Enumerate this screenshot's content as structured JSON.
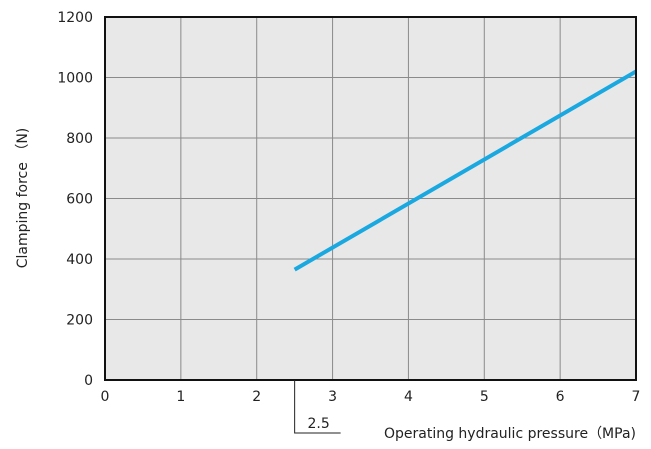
{
  "chart_data": {
    "type": "line",
    "xlabel": "Operating hydraulic pressure（MPa)",
    "ylabel": "Clamping force （N)",
    "xlim": [
      0,
      7
    ],
    "ylim": [
      0,
      1200
    ],
    "x_ticks": [
      "0",
      "1",
      "2",
      "3",
      "4",
      "5",
      "6",
      "7"
    ],
    "y_ticks": [
      "0",
      "200",
      "400",
      "600",
      "800",
      "1000",
      "1200"
    ],
    "grid": true,
    "plot_background": "#e8e8e8",
    "series_color": "#1aa8e0",
    "series": [
      {
        "x": [
          2.5,
          7
        ],
        "values": [
          365,
          1020
        ]
      }
    ],
    "annotation": {
      "x": 2.5,
      "label": "2.5"
    }
  }
}
